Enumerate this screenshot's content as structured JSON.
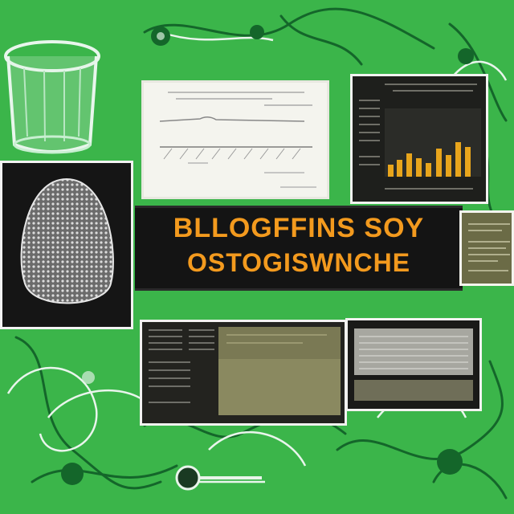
{
  "title": {
    "line1": "BLLOGFFINS SOY",
    "line2": "OSTOGISWNCHE"
  },
  "colors": {
    "background": "#3bb54a",
    "vine": "#14662a",
    "title_text": "#f39a1e",
    "bar": "#e8a51c"
  },
  "icons": [
    "glass-jar-icon",
    "seed-pod-icon",
    "magnifier-icon"
  ]
}
